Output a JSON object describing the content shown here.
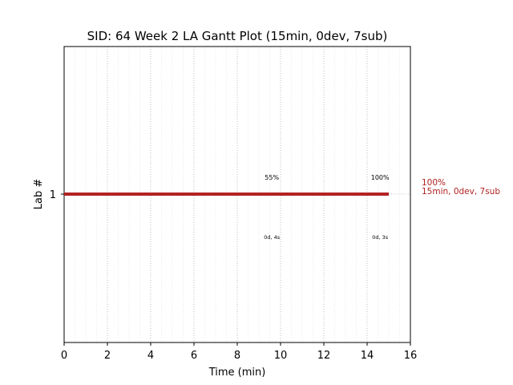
{
  "chart_data": {
    "type": "gantt",
    "title": "SID: 64 Week 2 LA Gantt Plot (15min, 0dev, 7sub)",
    "xlabel": "Time (min)",
    "ylabel": "Lab #",
    "xlim": [
      0,
      16
    ],
    "x_ticks": [
      0,
      2,
      4,
      6,
      8,
      10,
      12,
      14,
      16
    ],
    "x_tick_labels": [
      "0",
      "2",
      "4",
      "6",
      "8",
      "10",
      "12",
      "14",
      "16"
    ],
    "y_ticks": [
      1
    ],
    "y_tick_labels": [
      "1"
    ],
    "grid": true,
    "bar_color": "#b22222",
    "bars": [
      {
        "lab": 1,
        "start": 0,
        "end": 15
      }
    ],
    "progress_labels": [
      {
        "x": 9.6,
        "text": "55%"
      },
      {
        "x": 14.6,
        "text": "100%"
      }
    ],
    "duration_labels": [
      {
        "x": 9.6,
        "text": "0d, 4s"
      },
      {
        "x": 14.6,
        "text": "0d, 3s"
      }
    ],
    "side_annotation": [
      "100%",
      "15min, 0dev, 7sub"
    ]
  }
}
